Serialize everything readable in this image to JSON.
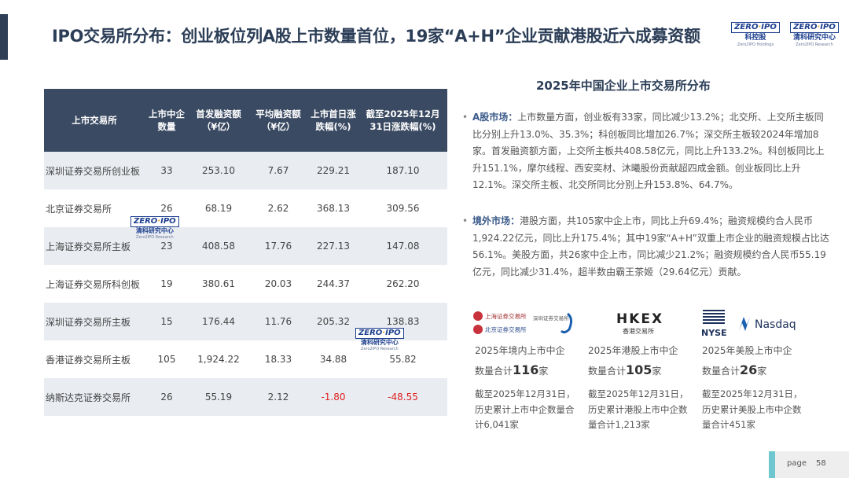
{
  "title": "IPO交易所分布：创业板位列A股上市数量首位，19家“A+H”企业贡献港股近六成募资额",
  "logos": {
    "zero": "ZERO",
    "ipo": "IPO",
    "kekong_cn": "科控股",
    "kekong_en": "Zero2IPO Holdings",
    "research_cn": "清科研究中心",
    "research_en": "Zero2IPO Research"
  },
  "table": {
    "headers": [
      "上市交易所",
      "上市中企数量",
      "首发融资额（¥亿）",
      "平均融资额（¥亿）",
      "上市首日涨跌幅(%)",
      "截至2025年12月31日涨跌幅(%)"
    ],
    "rows": [
      [
        "深圳证券交易所创业板",
        "33",
        "253.10",
        "7.67",
        "229.21",
        "187.10"
      ],
      [
        "北京证券交易所",
        "26",
        "68.19",
        "2.62",
        "368.13",
        "309.56"
      ],
      [
        "上海证券交易所主板",
        "23",
        "408.58",
        "17.76",
        "227.13",
        "147.08"
      ],
      [
        "上海证券交易所科创板",
        "19",
        "380.61",
        "20.03",
        "244.37",
        "262.20"
      ],
      [
        "深圳证券交易所主板",
        "15",
        "176.44",
        "11.76",
        "205.32",
        "138.83"
      ],
      [
        "香港证券交易所主板",
        "105",
        "1,924.22",
        "18.33",
        "34.88",
        "55.82"
      ],
      [
        "纳斯达克证券交易所",
        "26",
        "55.19",
        "2.12",
        "-1.80",
        "-48.55"
      ]
    ],
    "negative_color": "#e02020"
  },
  "right": {
    "title": "2025年中国企业上市交易所分布",
    "a_label": "A股市场：",
    "a_text": "上市数量方面，创业板有33家，同比减少13.2%；北交所、上交所主板同比分别上升13.0%、35.3%；科创板同比增加26.7%；深交所主板较2024年增加8家。首发融资额方面，上交所主板共408.58亿元，同比上升133.2%。科创板同比上升151.1%，摩尔线程、西安奕材、沐曦股份贡献超四成金额。创业板同比上升12.1%。深交所主板、北交所同比分别上升153.8%、64.7%。",
    "o_label": "境外市场：",
    "o_text": "港股方面，共105家中企上市，同比上升69.4%；融资规模约合人民币1,924.22亿元，同比上升175.4%；其中19家“A+H”双重上市企业的融资规模占比达56.1%。美股方面，共26家中企上市，同比减少21.2%；融资规模约合人民币55.19亿元，同比减少31.4%，超半数由霸王茶姬（29.64亿元）贡献。",
    "exchanges": [
      {
        "logos": [
          "上海证券交易所",
          "深圳证券交易所",
          "北京证券交易所"
        ],
        "line1": "2025年境内上市中企",
        "line2_pre": "数量合计",
        "count": "116",
        "unit": "家",
        "hist": "截至2025年12月31日，历史累计上市中企数量合计6,041家"
      },
      {
        "logos": [
          "HKEX",
          "香港交易所"
        ],
        "line1": "2025年港股上市中企",
        "line2_pre": "数量合计",
        "count": "105",
        "unit": "家",
        "hist": "截至2025年12月31日，历史累计港股上市中企数量合计1,213家"
      },
      {
        "logos": [
          "NYSE",
          "Nasdaq"
        ],
        "line1": "2025年美股上市中企",
        "line2_pre": "数量合计",
        "count": "26",
        "unit": "家",
        "hist": "截至2025年12月31日，历史累计美股上市中企数量合计451家"
      }
    ]
  },
  "footer": {
    "page_label": "page",
    "page_number": "58"
  },
  "colors": {
    "header_bg": "#3a4a62",
    "title": "#2c3e57",
    "accent": "#6ec6cf"
  }
}
